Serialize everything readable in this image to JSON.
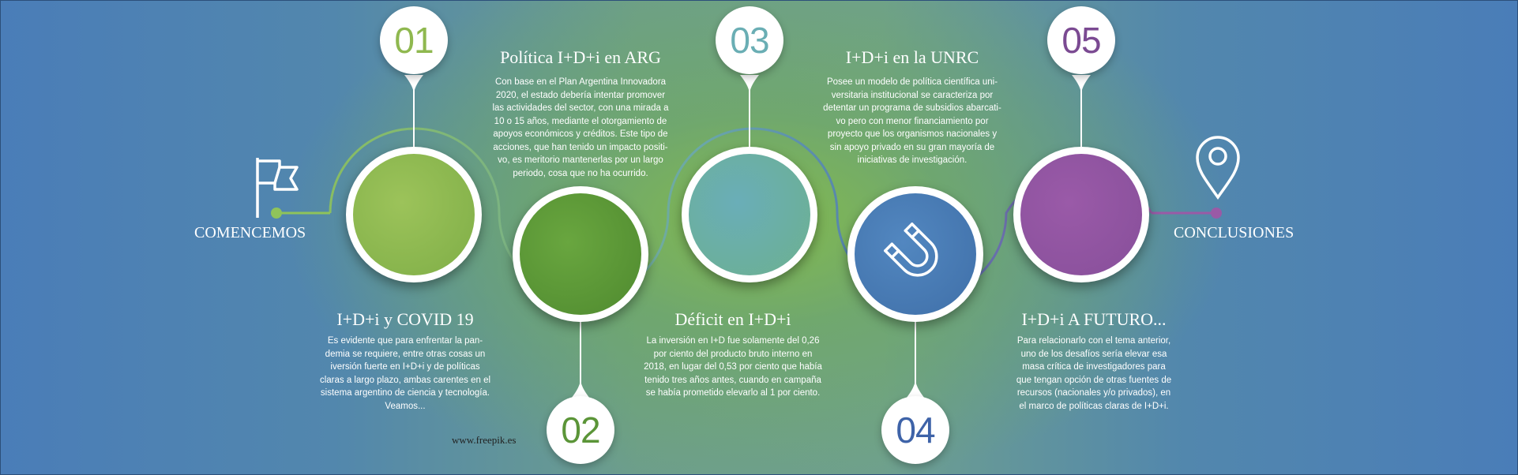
{
  "start_label": "COMENCEMOS",
  "end_label": "CONCLUSIONES",
  "credit": "www.freepik.es",
  "icons": {
    "start": "flag-icon",
    "end": "location-pin-icon",
    "step4": "magnet-icon"
  },
  "colors": {
    "step1": "#8fb84f",
    "step2": "#5b9538",
    "step3": "#6aaeb4",
    "step4": "#4a7ab5",
    "step5": "#8e5aa0"
  },
  "steps": [
    {
      "number": "01",
      "title": "Política I+D+i en ARG",
      "text": "Con base en el Plan Argentina Innovadora\n2020, el estado debería intentar promover\nlas actividades del sector, con una mirada a\n10 o 15 años, mediante el otorgamiento de\napoyos económicos y créditos. Este tipo de\nacciones, que han tenido un impacto positi-\nvo, es meritorio mantenerlas por un largo\nperiodo, cosa que no ha ocurrido."
    },
    {
      "number": "02",
      "title": "I+D+i y COVID 19",
      "text": "Es evidente que para enfrentar la pan-\ndemia se requiere, entre otras cosas un\niversión fuerte en I+D+i y de políticas\nclaras a largo plazo, ambas carentes en el\nsistema argentino de ciencia y tecnología.\nVeamos..."
    },
    {
      "number": "03",
      "title": "I+D+i en la UNRC",
      "text": "Posee un modelo de política científica uni-\nversitaria institucional se caracteriza por\ndetentar un programa de subsidios abarcati-\nvo pero con menor financiamiento por\nproyecto que los organismos nacionales y\nsin apoyo privado en su gran mayoría de\niniciativas de investigación."
    },
    {
      "number": "04",
      "title": "Déficit en I+D+i",
      "text": "La inversión en I+D fue solamente del 0,26\npor ciento del producto bruto interno en\n2018, en lugar del 0,53 por ciento que había\ntenido tres años antes, cuando en campaña\nse había prometido elevarlo al 1 por ciento."
    },
    {
      "number": "05",
      "title": "I+D+i A FUTURO...",
      "text": "Para relacionarlo con el tema anterior,\nuno de los desafíos sería elevar esa\nmasa crítica de investigadores para\nque tengan opción de otras fuentes de\nrecursos (nacionales y/o privados), en\nel marco de políticas claras de I+D+i."
    }
  ]
}
